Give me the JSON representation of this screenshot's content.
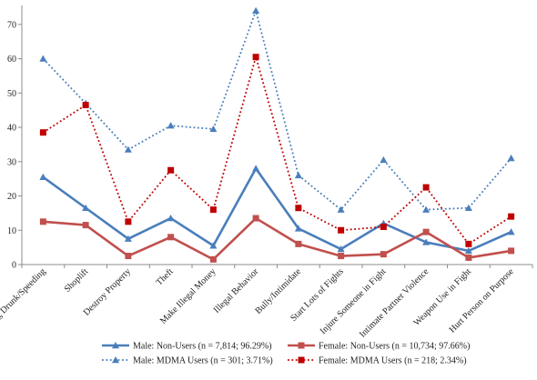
{
  "chart_data": {
    "type": "line",
    "categories": [
      "Driving Drunk/Speeding",
      "Shoplift",
      "Destroy Property",
      "Theft",
      "Make Illegal Money",
      "Illegal Behavior",
      "Bully/Intimidate",
      "Start Lots of Fights",
      "Injure Someone in Fight",
      "Intimate Partner Violence",
      "Weapon Use in Fight",
      "Hurt Person on Purpose"
    ],
    "ylim": [
      0,
      75
    ],
    "yticks": [
      "0",
      "10",
      "20",
      "30",
      "40",
      "50",
      "60",
      "70"
    ],
    "grid": false,
    "legend_position": "bottom",
    "series": [
      {
        "name": "Male: Non-Users (n = 7,814; 96.29%)",
        "color": "#4a7ebb",
        "style": "solid",
        "marker": "triangle",
        "values": [
          25.5,
          16.5,
          7.5,
          13.5,
          5.5,
          28,
          10.5,
          4.5,
          12,
          6.5,
          4,
          9.5
        ]
      },
      {
        "name": "Female: Non-Users (n = 10,734; 97.66%)",
        "color": "#c0504d",
        "style": "solid",
        "marker": "square",
        "values": [
          12.5,
          11.5,
          2.5,
          8,
          1.5,
          13.5,
          6,
          2.5,
          3,
          9.5,
          2,
          4
        ]
      },
      {
        "name": "Male: MDMA Users (n = 301; 3.71%)",
        "color": "#4a7ebb",
        "style": "dotted",
        "marker": "triangle",
        "values": [
          60,
          47,
          33.5,
          40.5,
          39.5,
          74,
          26,
          16,
          30.5,
          16,
          16.5,
          31
        ]
      },
      {
        "name": "Female: MDMA Users (n = 218; 2.34%)",
        "color": "#c00000",
        "style": "dotted",
        "marker": "square",
        "values": [
          38.5,
          46.5,
          12.5,
          27.5,
          16,
          60.5,
          16.5,
          10,
          11,
          22.5,
          6,
          14
        ]
      }
    ]
  }
}
